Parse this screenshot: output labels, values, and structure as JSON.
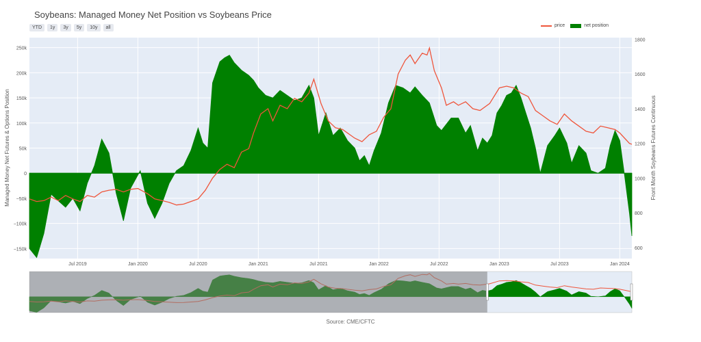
{
  "header": {
    "title": "Soybeans: Managed Money Net Position vs Soybeans Price",
    "range_buttons": [
      "YTD",
      "1y",
      "3y",
      "5y",
      "10y",
      "all"
    ]
  },
  "legend": {
    "price_label": "price",
    "net_label": "net position"
  },
  "source": "Source: CME/CFTC",
  "colors": {
    "price": "#ef553b",
    "net": "#008000",
    "plot_bg": "#e5ecf6",
    "selector_shade": "#808080"
  },
  "chart_data": {
    "type": "area",
    "title": "Soybeans: Managed Money Net Position vs Soybeans Price",
    "xlabel": "",
    "ylabel": "Managed Money Net Futures & Options Position",
    "y2label": "Front Month Soybeans Futures Continuous",
    "xlim": [
      2019.1,
      2024.1
    ],
    "ylim": [
      -170000,
      270000
    ],
    "y2lim": [
      536,
      1810
    ],
    "x_ticks": [
      {
        "label": "Jul 2019",
        "x": 2019.5
      },
      {
        "label": "Jan 2020",
        "x": 2020.0
      },
      {
        "label": "Jul 2020",
        "x": 2020.5
      },
      {
        "label": "Jan 2021",
        "x": 2021.0
      },
      {
        "label": "Jul 2021",
        "x": 2021.5
      },
      {
        "label": "Jan 2022",
        "x": 2022.0
      },
      {
        "label": "Jul 2022",
        "x": 2022.5
      },
      {
        "label": "Jan 2023",
        "x": 2023.0
      },
      {
        "label": "Jul 2023",
        "x": 2023.5
      },
      {
        "label": "Jan 2024",
        "x": 2024.0
      }
    ],
    "y_ticks": [
      {
        "label": "−150k",
        "v": -150000
      },
      {
        "label": "−100k",
        "v": -100000
      },
      {
        "label": "−50k",
        "v": -50000
      },
      {
        "label": "0",
        "v": 0
      },
      {
        "label": "50k",
        "v": 50000
      },
      {
        "label": "100k",
        "v": 100000
      },
      {
        "label": "150k",
        "v": 150000
      },
      {
        "label": "200k",
        "v": 200000
      },
      {
        "label": "250k",
        "v": 250000
      }
    ],
    "y2_ticks": [
      {
        "label": "600",
        "v": 600
      },
      {
        "label": "800",
        "v": 800
      },
      {
        "label": "1000",
        "v": 1000
      },
      {
        "label": "1200",
        "v": 1200
      },
      {
        "label": "1400",
        "v": 1400
      },
      {
        "label": "1600",
        "v": 1600
      },
      {
        "label": "1800",
        "v": 1800
      }
    ],
    "series": [
      {
        "name": "net position",
        "axis": "left",
        "points": [
          [
            2019.1,
            -150000
          ],
          [
            2019.16,
            -168000
          ],
          [
            2019.22,
            -120000
          ],
          [
            2019.28,
            -42000
          ],
          [
            2019.34,
            -55000
          ],
          [
            2019.4,
            -68000
          ],
          [
            2019.46,
            -50000
          ],
          [
            2019.52,
            -75000
          ],
          [
            2019.58,
            -20000
          ],
          [
            2019.64,
            15000
          ],
          [
            2019.7,
            68000
          ],
          [
            2019.76,
            40000
          ],
          [
            2019.82,
            -40000
          ],
          [
            2019.88,
            -95000
          ],
          [
            2019.94,
            -30000
          ],
          [
            2020.02,
            5000
          ],
          [
            2020.08,
            -60000
          ],
          [
            2020.14,
            -90000
          ],
          [
            2020.2,
            -60000
          ],
          [
            2020.26,
            -20000
          ],
          [
            2020.32,
            5000
          ],
          [
            2020.38,
            15000
          ],
          [
            2020.44,
            45000
          ],
          [
            2020.5,
            90000
          ],
          [
            2020.54,
            60000
          ],
          [
            2020.58,
            50000
          ],
          [
            2020.62,
            180000
          ],
          [
            2020.68,
            222000
          ],
          [
            2020.72,
            230000
          ],
          [
            2020.76,
            235000
          ],
          [
            2020.8,
            220000
          ],
          [
            2020.86,
            205000
          ],
          [
            2020.92,
            195000
          ],
          [
            2020.96,
            185000
          ],
          [
            2021.0,
            170000
          ],
          [
            2021.06,
            155000
          ],
          [
            2021.12,
            150000
          ],
          [
            2021.18,
            165000
          ],
          [
            2021.24,
            155000
          ],
          [
            2021.3,
            145000
          ],
          [
            2021.36,
            150000
          ],
          [
            2021.42,
            175000
          ],
          [
            2021.46,
            150000
          ],
          [
            2021.5,
            75000
          ],
          [
            2021.56,
            120000
          ],
          [
            2021.62,
            75000
          ],
          [
            2021.68,
            90000
          ],
          [
            2021.74,
            65000
          ],
          [
            2021.8,
            50000
          ],
          [
            2021.84,
            25000
          ],
          [
            2021.88,
            35000
          ],
          [
            2021.92,
            15000
          ],
          [
            2021.96,
            45000
          ],
          [
            2022.02,
            80000
          ],
          [
            2022.08,
            140000
          ],
          [
            2022.14,
            175000
          ],
          [
            2022.2,
            170000
          ],
          [
            2022.26,
            160000
          ],
          [
            2022.3,
            172000
          ],
          [
            2022.36,
            155000
          ],
          [
            2022.42,
            140000
          ],
          [
            2022.48,
            95000
          ],
          [
            2022.52,
            85000
          ],
          [
            2022.6,
            110000
          ],
          [
            2022.66,
            110000
          ],
          [
            2022.72,
            80000
          ],
          [
            2022.76,
            95000
          ],
          [
            2022.82,
            45000
          ],
          [
            2022.86,
            70000
          ],
          [
            2022.9,
            60000
          ],
          [
            2022.94,
            75000
          ],
          [
            2022.98,
            120000
          ],
          [
            2023.02,
            135000
          ],
          [
            2023.06,
            155000
          ],
          [
            2023.1,
            160000
          ],
          [
            2023.14,
            175000
          ],
          [
            2023.18,
            150000
          ],
          [
            2023.22,
            120000
          ],
          [
            2023.26,
            90000
          ],
          [
            2023.3,
            50000
          ],
          [
            2023.34,
            0
          ],
          [
            2023.4,
            55000
          ],
          [
            2023.46,
            75000
          ],
          [
            2023.5,
            90000
          ],
          [
            2023.56,
            60000
          ],
          [
            2023.6,
            20000
          ],
          [
            2023.66,
            55000
          ],
          [
            2023.72,
            40000
          ],
          [
            2023.76,
            5000
          ],
          [
            2023.82,
            0
          ],
          [
            2023.88,
            10000
          ],
          [
            2023.92,
            55000
          ],
          [
            2023.96,
            85000
          ],
          [
            2024.0,
            65000
          ],
          [
            2024.04,
            -5000
          ],
          [
            2024.08,
            -80000
          ],
          [
            2024.1,
            -125000
          ]
        ]
      },
      {
        "name": "price",
        "axis": "right",
        "points": [
          [
            2019.1,
            880
          ],
          [
            2019.16,
            865
          ],
          [
            2019.22,
            870
          ],
          [
            2019.28,
            890
          ],
          [
            2019.34,
            870
          ],
          [
            2019.4,
            900
          ],
          [
            2019.46,
            880
          ],
          [
            2019.52,
            865
          ],
          [
            2019.58,
            900
          ],
          [
            2019.64,
            890
          ],
          [
            2019.7,
            920
          ],
          [
            2019.76,
            930
          ],
          [
            2019.82,
            935
          ],
          [
            2019.88,
            920
          ],
          [
            2019.94,
            935
          ],
          [
            2020.0,
            940
          ],
          [
            2020.08,
            910
          ],
          [
            2020.14,
            880
          ],
          [
            2020.2,
            870
          ],
          [
            2020.26,
            860
          ],
          [
            2020.32,
            845
          ],
          [
            2020.38,
            850
          ],
          [
            2020.44,
            865
          ],
          [
            2020.5,
            880
          ],
          [
            2020.56,
            930
          ],
          [
            2020.62,
            1000
          ],
          [
            2020.68,
            1050
          ],
          [
            2020.74,
            1080
          ],
          [
            2020.8,
            1060
          ],
          [
            2020.86,
            1150
          ],
          [
            2020.92,
            1170
          ],
          [
            2020.96,
            1260
          ],
          [
            2021.02,
            1370
          ],
          [
            2021.08,
            1400
          ],
          [
            2021.12,
            1330
          ],
          [
            2021.18,
            1420
          ],
          [
            2021.24,
            1400
          ],
          [
            2021.3,
            1460
          ],
          [
            2021.36,
            1440
          ],
          [
            2021.42,
            1490
          ],
          [
            2021.46,
            1570
          ],
          [
            2021.52,
            1430
          ],
          [
            2021.58,
            1330
          ],
          [
            2021.64,
            1290
          ],
          [
            2021.7,
            1280
          ],
          [
            2021.76,
            1250
          ],
          [
            2021.8,
            1230
          ],
          [
            2021.86,
            1210
          ],
          [
            2021.92,
            1250
          ],
          [
            2021.98,
            1270
          ],
          [
            2022.04,
            1350
          ],
          [
            2022.1,
            1400
          ],
          [
            2022.16,
            1600
          ],
          [
            2022.22,
            1680
          ],
          [
            2022.26,
            1710
          ],
          [
            2022.3,
            1660
          ],
          [
            2022.36,
            1720
          ],
          [
            2022.4,
            1710
          ],
          [
            2022.42,
            1750
          ],
          [
            2022.46,
            1620
          ],
          [
            2022.52,
            1520
          ],
          [
            2022.56,
            1420
          ],
          [
            2022.62,
            1440
          ],
          [
            2022.66,
            1420
          ],
          [
            2022.72,
            1440
          ],
          [
            2022.78,
            1400
          ],
          [
            2022.84,
            1390
          ],
          [
            2022.92,
            1430
          ],
          [
            2023.0,
            1520
          ],
          [
            2023.06,
            1530
          ],
          [
            2023.12,
            1520
          ],
          [
            2023.18,
            1490
          ],
          [
            2023.24,
            1470
          ],
          [
            2023.3,
            1390
          ],
          [
            2023.36,
            1360
          ],
          [
            2023.42,
            1330
          ],
          [
            2023.48,
            1310
          ],
          [
            2023.54,
            1370
          ],
          [
            2023.6,
            1330
          ],
          [
            2023.66,
            1300
          ],
          [
            2023.72,
            1270
          ],
          [
            2023.78,
            1260
          ],
          [
            2023.84,
            1300
          ],
          [
            2023.9,
            1290
          ],
          [
            2023.96,
            1280
          ],
          [
            2024.0,
            1260
          ],
          [
            2024.04,
            1230
          ],
          [
            2024.08,
            1200
          ],
          [
            2024.1,
            1195
          ]
        ]
      }
    ],
    "range_slider": {
      "selected_start": 2022.9,
      "selected_end": 2024.1,
      "range": [
        2019.1,
        2024.1
      ]
    }
  }
}
